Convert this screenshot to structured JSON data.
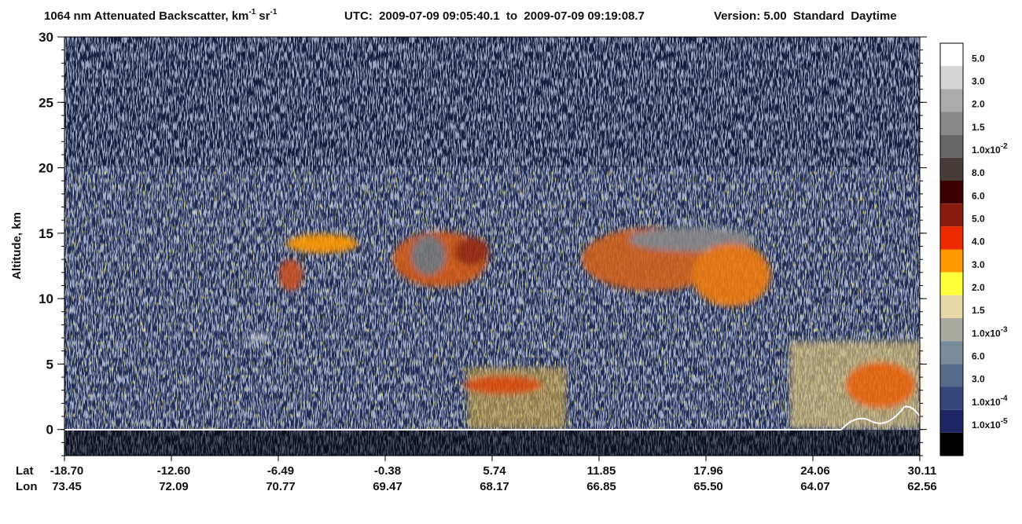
{
  "chart_data": {
    "type": "heatmap",
    "title": {
      "text": "1064 nm Attenuated Backscatter, km",
      "unit_exp": "-1",
      "unit2": "sr",
      "unit2_exp": "-1"
    },
    "utc": "UTC:  2009-07-09 09:05:40.1  to  2009-07-09 09:19:08.7",
    "version": "Version: 5.00  Standard  Daytime",
    "ylabel": "Altitude, km",
    "ylim": [
      -2,
      30
    ],
    "yticks": [
      0,
      5,
      10,
      15,
      20,
      25,
      30
    ],
    "x_rows": [
      {
        "label": "Lat",
        "ticks": [
          "-18.70",
          "-12.60",
          "-6.49",
          "-0.38",
          "5.74",
          "11.85",
          "17.96",
          "24.06",
          "30.11"
        ]
      },
      {
        "label": "Lon",
        "ticks": [
          "73.45",
          "72.09",
          "70.77",
          "69.47",
          "68.17",
          "66.85",
          "65.50",
          "64.07",
          "62.56"
        ]
      }
    ],
    "colorbar": [
      {
        "label": "5.0",
        "color": "#ffffff"
      },
      {
        "label": "3.0",
        "color": "#d4d4d4"
      },
      {
        "label": "2.0",
        "color": "#ababab"
      },
      {
        "label": "1.5",
        "color": "#888888"
      },
      {
        "label": "1.0x10",
        "exponent": "-2",
        "color": "#666666"
      },
      {
        "label": "8.0",
        "color": "#483c3a"
      },
      {
        "label": "6.0",
        "color": "#3c0000"
      },
      {
        "label": "5.0",
        "color": "#8a1a10"
      },
      {
        "label": "4.0",
        "color": "#ee2a00"
      },
      {
        "label": "3.0",
        "color": "#ff9900"
      },
      {
        "label": "2.0",
        "color": "#ffff3a"
      },
      {
        "label": "1.5",
        "color": "#e8d8a8"
      },
      {
        "label": "1.0x10",
        "exponent": "-3",
        "color": "#a8aaa0"
      },
      {
        "label": "6.0",
        "color": "#7a8c9c"
      },
      {
        "label": "3.0",
        "color": "#566a8a"
      },
      {
        "label": "1.0x10",
        "exponent": "-4",
        "color": "#34477c"
      },
      {
        "label": "1.0x10",
        "exponent": "-5",
        "color": "#1e2666"
      },
      {
        "color": "#000000"
      }
    ]
  }
}
